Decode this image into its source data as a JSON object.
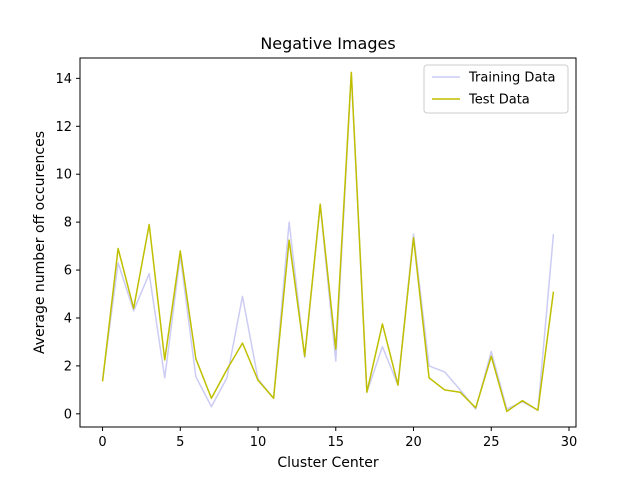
{
  "chart_data": {
    "type": "line",
    "title": "Negative Images",
    "xlabel": "Cluster Center",
    "ylabel": "Average number off occurences",
    "xlim": [
      -1.45,
      30.45
    ],
    "ylim": [
      -0.55,
      14.85
    ],
    "xticks": [
      0,
      5,
      10,
      15,
      20,
      25,
      30
    ],
    "yticks": [
      0,
      2,
      4,
      6,
      8,
      10,
      12,
      14
    ],
    "grid": false,
    "legend_position": "upper right",
    "x": [
      0,
      1,
      2,
      3,
      4,
      5,
      6,
      7,
      8,
      9,
      10,
      11,
      12,
      13,
      14,
      15,
      16,
      17,
      18,
      19,
      20,
      21,
      22,
      23,
      24,
      25,
      26,
      27,
      28,
      29
    ],
    "series": [
      {
        "name": "Training Data",
        "color": "#ccccf5",
        "values": [
          1.4,
          6.3,
          4.3,
          5.85,
          1.5,
          6.6,
          1.55,
          0.3,
          1.5,
          4.9,
          1.45,
          0.65,
          8.0,
          2.35,
          8.7,
          2.2,
          14.2,
          0.9,
          2.8,
          1.2,
          7.5,
          2.0,
          1.75,
          1.0,
          0.2,
          2.6,
          0.2,
          0.5,
          0.15,
          7.5
        ]
      },
      {
        "name": "Test Data",
        "color": "#bfbf00",
        "values": [
          1.35,
          6.9,
          4.4,
          7.9,
          2.25,
          6.8,
          2.3,
          0.65,
          1.85,
          2.95,
          1.4,
          0.65,
          7.25,
          2.4,
          8.75,
          2.7,
          14.25,
          0.9,
          3.75,
          1.2,
          7.35,
          1.5,
          1.0,
          0.9,
          0.25,
          2.4,
          0.1,
          0.55,
          0.15,
          5.1
        ]
      }
    ]
  }
}
